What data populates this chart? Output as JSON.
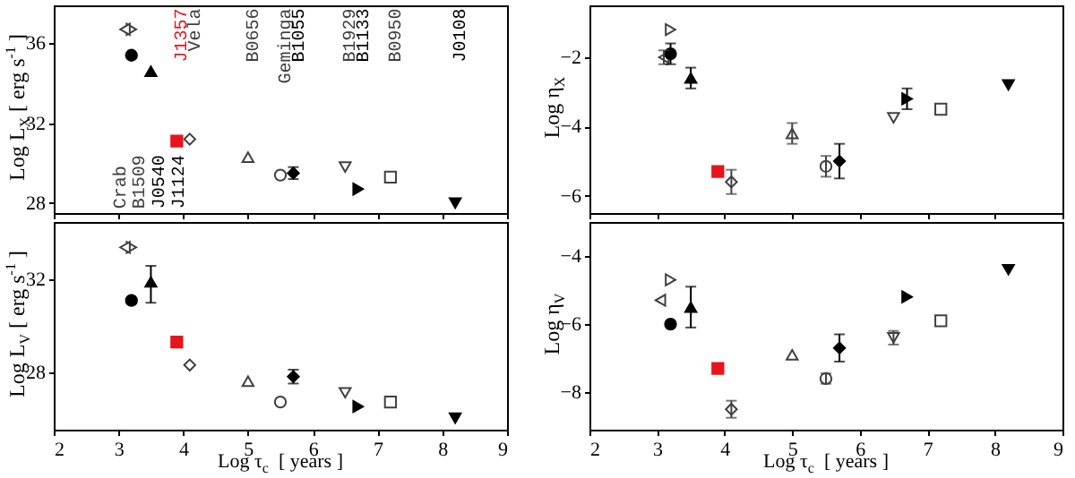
{
  "chart_data": [
    {
      "type": "scatter",
      "ylabel": "Log L$_{X}$ [ erg s$^{-1}$ ]",
      "xlim": [
        2,
        9
      ],
      "xticks": [
        2,
        3,
        4,
        5,
        6,
        7,
        8,
        9
      ],
      "ylim": [
        27.5,
        37.9
      ],
      "yticks": [
        28,
        32,
        36
      ],
      "tick_labels": "y",
      "grid": false,
      "series": [
        {
          "color": "#404040",
          "marker": "triangle-right-open",
          "x": [
            3.2
          ],
          "values": [
            36.7
          ]
        },
        {
          "color": "#404040",
          "marker": "triangle-left-open",
          "x": [
            3.1
          ],
          "values": [
            36.7
          ]
        },
        {
          "color": "#000000",
          "marker": "circle",
          "x": [
            3.2
          ],
          "values": [
            35.4
          ]
        },
        {
          "color": "#000000",
          "marker": "triangle",
          "x": [
            3.5
          ],
          "values": [
            34.6
          ]
        },
        {
          "color": "#e8141b",
          "marker": "square",
          "x": [
            3.9
          ],
          "values": [
            31.1
          ]
        },
        {
          "color": "#404040",
          "marker": "diamond-open",
          "x": [
            4.1
          ],
          "values": [
            31.2
          ]
        },
        {
          "color": "#404040",
          "marker": "triangle-open",
          "x": [
            5.0
          ],
          "values": [
            30.3
          ]
        },
        {
          "color": "#404040",
          "marker": "circle-open",
          "x": [
            5.5
          ],
          "values": [
            29.4
          ]
        },
        {
          "color": "#000000",
          "marker": "diamond",
          "x": [
            5.7
          ],
          "values": [
            29.5
          ],
          "errors": [
            0.3
          ]
        },
        {
          "color": "#404040",
          "marker": "triangle-down-open",
          "x": [
            6.5
          ],
          "values": [
            29.8
          ]
        },
        {
          "color": "#000000",
          "marker": "triangle-right",
          "x": [
            6.7
          ],
          "values": [
            28.7
          ]
        },
        {
          "color": "#404040",
          "marker": "square-open",
          "x": [
            7.2
          ],
          "values": [
            29.3
          ]
        },
        {
          "color": "#000000",
          "marker": "triangle-down",
          "x": [
            8.2
          ],
          "values": [
            28.0
          ]
        }
      ],
      "annotations": [
        "Crab",
        "B1509",
        "J0540",
        "J1124",
        "J1357",
        "Vela",
        "B0656",
        "Geminga",
        "B1055",
        "B1929",
        "B1133",
        "B0950",
        "J0108"
      ]
    },
    {
      "type": "scatter",
      "ylabel": "Log η$_{X}$",
      "xlim": [
        2,
        9
      ],
      "xticks": [
        2,
        3,
        4,
        5,
        6,
        7,
        8,
        9
      ],
      "ylim": [
        -6.5,
        -0.5
      ],
      "yticks": [
        -6,
        -4,
        -2
      ],
      "tick_labels": "y",
      "grid": false,
      "series": [
        {
          "color": "#404040",
          "marker": "triangle-right-open",
          "x": [
            3.2
          ],
          "values": [
            -1.2
          ]
        },
        {
          "color": "#404040",
          "marker": "triangle-left-open",
          "x": [
            3.1
          ],
          "values": [
            -2.0
          ],
          "errors": [
            0.2
          ]
        },
        {
          "color": "#000000",
          "marker": "circle",
          "x": [
            3.2
          ],
          "values": [
            -1.9
          ],
          "errors": [
            0.3
          ]
        },
        {
          "color": "#000000",
          "marker": "triangle",
          "x": [
            3.5
          ],
          "values": [
            -2.6
          ],
          "errors": [
            0.3
          ]
        },
        {
          "color": "#e8141b",
          "marker": "square",
          "x": [
            3.9
          ],
          "values": [
            -5.3
          ]
        },
        {
          "color": "#404040",
          "marker": "diamond-open",
          "x": [
            4.1
          ],
          "values": [
            -5.6
          ],
          "errors": [
            0.35
          ]
        },
        {
          "color": "#404040",
          "marker": "triangle-open",
          "x": [
            5.0
          ],
          "values": [
            -4.2
          ],
          "errors": [
            0.3
          ]
        },
        {
          "color": "#404040",
          "marker": "circle-open",
          "x": [
            5.5
          ],
          "values": [
            -5.15
          ],
          "errors": [
            0.3
          ]
        },
        {
          "color": "#000000",
          "marker": "diamond",
          "x": [
            5.7
          ],
          "values": [
            -5.0
          ],
          "errors": [
            0.5
          ]
        },
        {
          "color": "#404040",
          "marker": "triangle-down-open",
          "x": [
            6.5
          ],
          "values": [
            -3.75
          ]
        },
        {
          "color": "#000000",
          "marker": "triangle-right",
          "x": [
            6.7
          ],
          "values": [
            -3.2
          ],
          "errors": [
            0.3
          ]
        },
        {
          "color": "#404040",
          "marker": "square-open",
          "x": [
            7.2
          ],
          "values": [
            -3.5
          ]
        },
        {
          "color": "#000000",
          "marker": "triangle-down",
          "x": [
            8.2
          ],
          "values": [
            -2.8
          ]
        }
      ]
    },
    {
      "type": "scatter",
      "xlabel": "Log τ$_{c}$  [ years ]",
      "ylabel": "Log L$_{V}$ [ erg s$^{-1}$ ]",
      "xlim": [
        2,
        9
      ],
      "xticks": [
        2,
        3,
        4,
        5,
        6,
        7,
        8,
        9
      ],
      "ylim": [
        25.5,
        34.5
      ],
      "yticks": [
        28,
        32
      ],
      "grid": false,
      "series": [
        {
          "color": "#404040",
          "marker": "triangle-right-open",
          "x": [
            3.2
          ],
          "values": [
            33.4
          ]
        },
        {
          "color": "#404040",
          "marker": "triangle-left-open",
          "x": [
            3.1
          ],
          "values": [
            33.4
          ]
        },
        {
          "color": "#000000",
          "marker": "circle",
          "x": [
            3.2
          ],
          "values": [
            31.1
          ]
        },
        {
          "color": "#000000",
          "marker": "triangle",
          "x": [
            3.5
          ],
          "values": [
            31.9
          ],
          "errors": [
            [
              31.0,
              32.6
            ]
          ]
        },
        {
          "color": "#e8141b",
          "marker": "square",
          "x": [
            3.9
          ],
          "values": [
            29.3
          ]
        },
        {
          "color": "#404040",
          "marker": "diamond-open",
          "x": [
            4.1
          ],
          "values": [
            28.3
          ]
        },
        {
          "color": "#404040",
          "marker": "triangle-open",
          "x": [
            5.0
          ],
          "values": [
            27.6
          ]
        },
        {
          "color": "#404040",
          "marker": "circle-open",
          "x": [
            5.5
          ],
          "values": [
            26.7
          ]
        },
        {
          "color": "#000000",
          "marker": "diamond",
          "x": [
            5.7
          ],
          "values": [
            27.8
          ],
          "errors": [
            0.3
          ]
        },
        {
          "color": "#404040",
          "marker": "triangle-down-open",
          "x": [
            6.5
          ],
          "values": [
            27.1
          ]
        },
        {
          "color": "#000000",
          "marker": "triangle-right",
          "x": [
            6.7
          ],
          "values": [
            26.5
          ]
        },
        {
          "color": "#404040",
          "marker": "square-open",
          "x": [
            7.2
          ],
          "values": [
            26.7
          ]
        },
        {
          "color": "#000000",
          "marker": "triangle-down",
          "x": [
            8.2
          ],
          "values": [
            26.0
          ]
        }
      ]
    },
    {
      "type": "scatter",
      "xlabel": "Log τ$_{c}$  [ years ]",
      "ylabel": "Log η$_{V}$",
      "xlim": [
        2,
        9
      ],
      "xticks": [
        2,
        3,
        4,
        5,
        6,
        7,
        8,
        9
      ],
      "ylim": [
        -9.1,
        -3.0
      ],
      "yticks": [
        -8,
        -6,
        -4
      ],
      "grid": false,
      "series": [
        {
          "color": "#404040",
          "marker": "triangle-right-open",
          "x": [
            3.2
          ],
          "values": [
            -4.7
          ]
        },
        {
          "color": "#404040",
          "marker": "triangle-left-open",
          "x": [
            3.05
          ],
          "values": [
            -5.3
          ]
        },
        {
          "color": "#000000",
          "marker": "circle",
          "x": [
            3.2
          ],
          "values": [
            -6.0
          ]
        },
        {
          "color": "#000000",
          "marker": "triangle",
          "x": [
            3.5
          ],
          "values": [
            -5.5
          ],
          "errors": [
            [
              -6.1,
              -4.9
            ]
          ]
        },
        {
          "color": "#e8141b",
          "marker": "square",
          "x": [
            3.9
          ],
          "values": [
            -7.3
          ]
        },
        {
          "color": "#404040",
          "marker": "diamond-open",
          "x": [
            4.1
          ],
          "values": [
            -8.5
          ],
          "errors": [
            0.25
          ]
        },
        {
          "color": "#404040",
          "marker": "triangle-open",
          "x": [
            5.0
          ],
          "values": [
            -6.9
          ]
        },
        {
          "color": "#404040",
          "marker": "circle-open",
          "x": [
            5.5
          ],
          "values": [
            -7.6
          ],
          "errors": [
            0.15
          ]
        },
        {
          "color": "#000000",
          "marker": "diamond",
          "x": [
            5.7
          ],
          "values": [
            -6.7
          ],
          "errors": [
            0.4
          ]
        },
        {
          "color": "#404040",
          "marker": "triangle-down-open",
          "x": [
            6.5
          ],
          "values": [
            -6.4
          ],
          "errors": [
            0.2
          ]
        },
        {
          "color": "#000000",
          "marker": "triangle-right",
          "x": [
            6.7
          ],
          "values": [
            -5.2
          ]
        },
        {
          "color": "#404040",
          "marker": "square-open",
          "x": [
            7.2
          ],
          "values": [
            -5.9
          ]
        },
        {
          "color": "#000000",
          "marker": "triangle-down",
          "x": [
            8.2
          ],
          "values": [
            -4.4
          ]
        }
      ]
    }
  ]
}
